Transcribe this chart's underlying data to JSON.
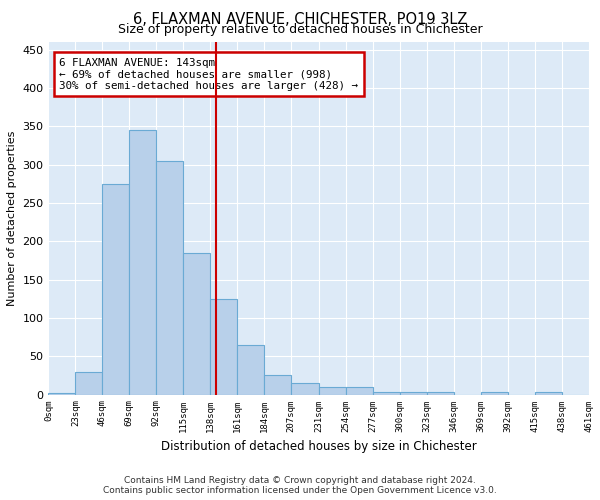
{
  "title": "6, FLAXMAN AVENUE, CHICHESTER, PO19 3LZ",
  "subtitle": "Size of property relative to detached houses in Chichester",
  "xlabel": "Distribution of detached houses by size in Chichester",
  "ylabel": "Number of detached properties",
  "footer_line1": "Contains HM Land Registry data © Crown copyright and database right 2024.",
  "footer_line2": "Contains public sector information licensed under the Open Government Licence v3.0.",
  "bin_edges": [
    0,
    23,
    46,
    69,
    92,
    115,
    138,
    161,
    184,
    207,
    231,
    254,
    277,
    300,
    323,
    346,
    369,
    392,
    415,
    438,
    461
  ],
  "bar_heights": [
    2,
    30,
    275,
    345,
    305,
    185,
    125,
    65,
    25,
    15,
    10,
    10,
    3,
    3,
    3,
    0,
    3,
    0,
    3,
    0
  ],
  "bar_color": "#b8d0ea",
  "bar_edge_color": "#6aaad4",
  "property_size": 143,
  "vline_color": "#cc0000",
  "annotation_text": "6 FLAXMAN AVENUE: 143sqm\n← 69% of detached houses are smaller (998)\n30% of semi-detached houses are larger (428) →",
  "annotation_box_color": "#cc0000",
  "annotation_text_color": "#000000",
  "background_color": "#ffffff",
  "plot_background_color": "#ddeaf7",
  "grid_color": "#ffffff",
  "ylim": [
    0,
    460
  ],
  "yticks": [
    0,
    50,
    100,
    150,
    200,
    250,
    300,
    350,
    400,
    450
  ],
  "figsize": [
    6.0,
    5.0
  ],
  "dpi": 100
}
